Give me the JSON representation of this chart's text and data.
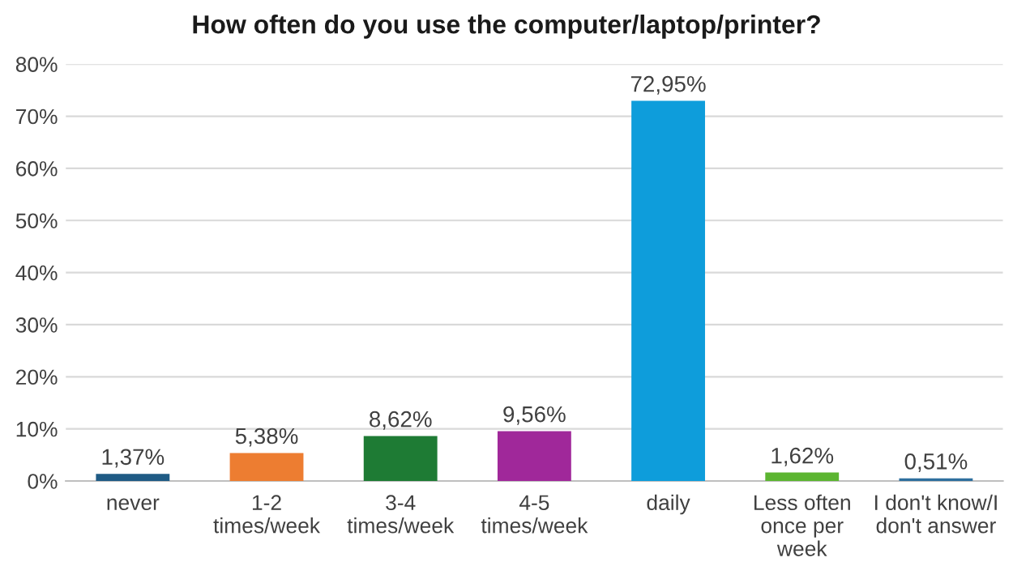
{
  "chart_data": {
    "type": "bar",
    "title": "How often do you use the computer/laptop/printer?",
    "categories": [
      "never",
      "1-2\ntimes/week",
      "3-4\ntimes/week",
      "4-5\ntimes/week",
      "daily",
      "Less often\nonce per\nweek",
      "I don't know/I\ndon't answer"
    ],
    "values": [
      1.37,
      5.38,
      8.62,
      9.56,
      72.95,
      1.62,
      0.51
    ],
    "value_labels": [
      "1,37%",
      "5,38%",
      "8,62%",
      "9,56%",
      "72,95%",
      "1,62%",
      "0,51%"
    ],
    "colors": [
      "#1f5b85",
      "#ed7d31",
      "#1e7b34",
      "#a0289a",
      "#0e9ddb",
      "#5cb531",
      "#2e6f9e"
    ],
    "ylim": [
      0,
      80
    ],
    "yticks": [
      {
        "value": 0,
        "label": "0%"
      },
      {
        "value": 10,
        "label": "10%"
      },
      {
        "value": 20,
        "label": "20%"
      },
      {
        "value": 30,
        "label": "30%"
      },
      {
        "value": 40,
        "label": "40%"
      },
      {
        "value": 50,
        "label": "50%"
      },
      {
        "value": 60,
        "label": "60%"
      },
      {
        "value": 70,
        "label": "70%"
      },
      {
        "value": 80,
        "label": "80%"
      }
    ],
    "grid": "y"
  }
}
